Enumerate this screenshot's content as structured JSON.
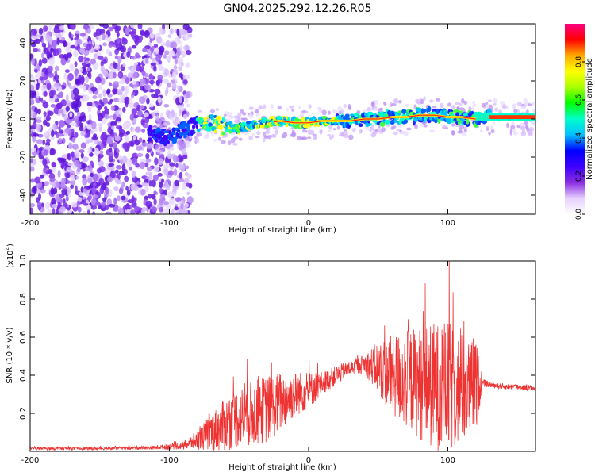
{
  "title": "GN04.2025.292.12.26.R05",
  "chart_data": [
    {
      "type": "heatmap",
      "name": "spectrogram",
      "xlabel": "Height of straight line (km)",
      "ylabel": "Frequency (Hz)",
      "xlim": [
        -200,
        163
      ],
      "ylim": [
        -50,
        50
      ],
      "xticks": [
        -200,
        -100,
        0,
        100
      ],
      "xtick_labels": [
        "-200",
        "-100",
        "0",
        "100"
      ],
      "yticks": [
        -40,
        -20,
        0,
        20,
        40
      ],
      "ytick_labels": [
        "-40",
        "-20",
        "0",
        "20",
        "40"
      ],
      "colorbar": {
        "label": "Normalized spectral amplitude",
        "range": [
          0,
          1
        ],
        "ticks": [
          0,
          0.2,
          0.4,
          0.6,
          0.8
        ],
        "tick_labels": [
          "0.0",
          "0.2",
          "0.4",
          "0.6",
          "0.8"
        ],
        "colors": [
          "#ffffff",
          "#e6d0ff",
          "#8a2be2",
          "#3f00ff",
          "#0000ff",
          "#00bfff",
          "#00ffcc",
          "#00ff00",
          "#aaff00",
          "#ffff00",
          "#ffaa00",
          "#ff0000",
          "#ff0080"
        ]
      },
      "ridge": {
        "x": [
          -115,
          -100,
          -90,
          -80,
          -70,
          -60,
          -50,
          -40,
          -30,
          -20,
          -10,
          0,
          10,
          20,
          30,
          40,
          50,
          60,
          70,
          80,
          90,
          100,
          110,
          120,
          130,
          140,
          150,
          163
        ],
        "y": [
          -8,
          -9,
          -6,
          -3,
          -2,
          -4,
          -5,
          -3,
          -2,
          -1,
          -2,
          -2,
          -1,
          -1,
          -1,
          0,
          0,
          1,
          1,
          2,
          2,
          1,
          1,
          0,
          1,
          1,
          1,
          1
        ]
      },
      "noise_region_x": [
        -200,
        -85
      ]
    },
    {
      "type": "line",
      "name": "snr",
      "xlabel": "Height of straight line (km)",
      "ylabel": "SNR (10 * v/v)",
      "multiplier_label": "(x10",
      "multiplier_exp": "4",
      "multiplier_close": ")",
      "xlim": [
        -200,
        163
      ],
      "ylim": [
        0,
        1.0
      ],
      "xticks": [
        -200,
        -100,
        0,
        100
      ],
      "xtick_labels": [
        "-200",
        "-100",
        "0",
        "100"
      ],
      "yticks": [
        0.2,
        0.4,
        0.6,
        0.8,
        1.0
      ],
      "ytick_labels": [
        "0.2",
        "0.4",
        "0.6",
        "0.8",
        "1.0"
      ],
      "color": "#ee3333",
      "envelope": {
        "x": [
          -200,
          -150,
          -110,
          -90,
          -80,
          -70,
          -60,
          -50,
          -40,
          -30,
          -20,
          -10,
          0,
          10,
          20,
          30,
          40,
          50,
          60,
          70,
          80,
          90,
          100,
          110,
          120,
          125,
          130,
          140,
          150,
          163
        ],
        "base": [
          0.015,
          0.015,
          0.02,
          0.03,
          0.06,
          0.1,
          0.14,
          0.18,
          0.2,
          0.22,
          0.26,
          0.3,
          0.32,
          0.36,
          0.4,
          0.44,
          0.46,
          0.44,
          0.4,
          0.38,
          0.36,
          0.34,
          0.33,
          0.33,
          0.34,
          0.36,
          0.35,
          0.34,
          0.34,
          0.33
        ],
        "spread": [
          0.008,
          0.008,
          0.01,
          0.02,
          0.05,
          0.1,
          0.14,
          0.16,
          0.17,
          0.18,
          0.16,
          0.12,
          0.1,
          0.06,
          0.05,
          0.04,
          0.05,
          0.14,
          0.22,
          0.26,
          0.3,
          0.34,
          0.35,
          0.3,
          0.26,
          0.02,
          0.015,
          0.015,
          0.015,
          0.015
        ]
      },
      "peak": {
        "x": 101,
        "y": 1.0
      }
    }
  ]
}
